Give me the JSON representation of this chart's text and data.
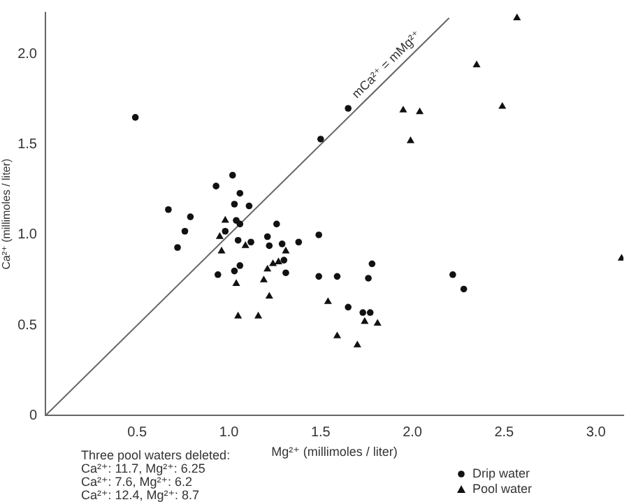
{
  "chart_data": {
    "type": "scatter",
    "xlabel": "Mg²⁺ (millimoles / liter)",
    "ylabel": "Ca²⁺ (millimoles / liter)",
    "xlim": [
      0,
      3.15
    ],
    "xticks": [
      {
        "value": 0.5,
        "label": "0.5"
      },
      {
        "value": 1,
        "label": "1.0"
      },
      {
        "value": 1.5,
        "label": "1.5"
      },
      {
        "value": 2,
        "label": "2.0"
      },
      {
        "value": 2.5,
        "label": "2.5"
      },
      {
        "value": 3,
        "label": "3.0"
      }
    ],
    "ylim": [
      0,
      2.23
    ],
    "yticks": [
      0,
      {
        "value": 0.5,
        "label": "0.5"
      },
      {
        "value": 1,
        "label": "1.0"
      },
      {
        "value": 1.5,
        "label": "1.5"
      },
      {
        "value": 2,
        "label": "2.0"
      }
    ],
    "grid": false,
    "legend": "bottom right",
    "series": [
      {
        "name": "Drip water",
        "color": "#111111",
        "marker": "circle",
        "x": [
          0.49,
          1.02,
          0.93,
          1.06,
          0.67,
          0.79,
          1.03,
          1.11,
          0.76,
          0.72,
          1.04,
          1.06,
          0.98,
          1.26,
          1.05,
          1.12,
          1.21,
          1.22,
          1.29,
          1.38,
          1.49,
          1.06,
          0.94,
          1.03,
          1.3,
          1.31,
          1.49,
          1.5,
          1.65,
          1.78,
          1.59,
          1.76,
          2.22,
          2.28,
          1.65,
          1.73,
          1.77
        ],
        "values": [
          1.65,
          1.33,
          1.27,
          1.23,
          1.14,
          1.1,
          1.17,
          1.16,
          1.02,
          0.93,
          1.08,
          1.06,
          1.02,
          1.06,
          0.97,
          0.96,
          0.99,
          0.94,
          0.95,
          0.96,
          1.0,
          0.83,
          0.78,
          0.8,
          0.86,
          0.79,
          0.77,
          1.53,
          1.7,
          0.84,
          0.77,
          0.76,
          0.78,
          0.7,
          0.6,
          0.57,
          0.57
        ]
      },
      {
        "name": "Pool water",
        "color": "#111111",
        "marker": "triangle",
        "x": [
          2.57,
          2.35,
          1.95,
          2.04,
          2.49,
          1.99,
          3.14,
          1.54,
          1.74,
          1.81,
          1.59,
          1.7,
          0.98,
          0.95,
          0.96,
          1.09,
          1.31,
          1.21,
          1.24,
          1.27,
          1.19,
          1.04,
          1.22,
          1.05,
          1.16
        ],
        "values": [
          2.2,
          1.94,
          1.69,
          1.68,
          1.71,
          1.52,
          0.87,
          0.63,
          0.52,
          0.51,
          0.44,
          0.39,
          1.08,
          0.99,
          0.91,
          0.94,
          0.91,
          0.81,
          0.84,
          0.85,
          0.75,
          0.73,
          0.66,
          0.55,
          0.55
        ]
      },
      {
        "type": "line",
        "color": "#666666",
        "marker": "none",
        "x": [
          0,
          2.2
        ],
        "values": [
          0,
          2.2
        ]
      }
    ],
    "annotations": [
      {
        "text": "mCa²⁺ = mMg²⁺",
        "x": 1.9,
        "y": 1.9
      },
      "Three pool waters deleted:",
      "Ca²⁺: 11.7, Mg²⁺: 6.25",
      "Ca²⁺: 7.6, Mg²⁺: 6.2",
      "Ca²⁺: 12.4, Mg²⁺: 8.7"
    ]
  }
}
